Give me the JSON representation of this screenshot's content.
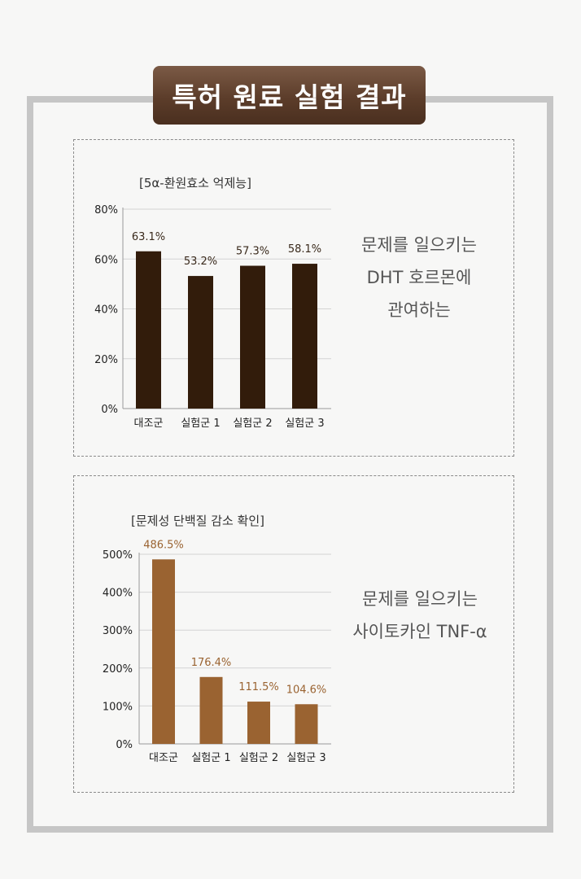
{
  "header": {
    "title": "특허 원료 실험 결과"
  },
  "chart_data": [
    {
      "type": "bar",
      "title": "[5α-환원효소 억제능]",
      "categories": [
        "대조군",
        "실험군 1",
        "실험군 2",
        "실험군 3"
      ],
      "values": [
        63.1,
        53.2,
        57.3,
        58.1
      ],
      "value_labels": [
        "63.1%",
        "53.2%",
        "57.3%",
        "58.1%"
      ],
      "yticks": [
        "0%",
        "20%",
        "40%",
        "60%",
        "80%"
      ],
      "ylim": [
        0,
        80
      ],
      "grid": true,
      "bar_color": "#321c0b",
      "label_color": "#3a2a1c",
      "xlabel": "",
      "ylabel": ""
    },
    {
      "type": "bar",
      "title": "[문제성 단백질 감소 확인]",
      "categories": [
        "대조군",
        "실험군 1",
        "실험군 2",
        "실험군 3"
      ],
      "values": [
        486.5,
        176.4,
        111.5,
        104.6
      ],
      "value_labels": [
        "486.5%",
        "176.4%",
        "111.5%",
        "104.6%"
      ],
      "yticks": [
        "0%",
        "100%",
        "200%",
        "300%",
        "400%",
        "500%"
      ],
      "ylim": [
        0,
        500
      ],
      "grid": true,
      "bar_color": "#9a6331",
      "label_color": "#9a6331",
      "xlabel": "",
      "ylabel": ""
    }
  ],
  "panels": [
    {
      "side_lines": [
        "문제를 일으키는",
        "DHT 호르몬에",
        "관여하는"
      ]
    },
    {
      "side_lines": [
        "문제를 일으키는",
        "사이토카인 TNF-α"
      ]
    }
  ]
}
